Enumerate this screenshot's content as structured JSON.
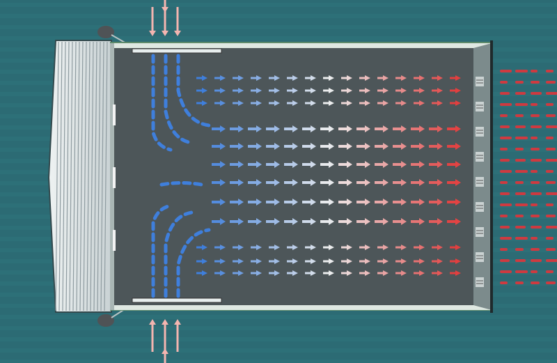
{
  "colors": {
    "water": "#2c6b74",
    "water_stripe": "#2f737c",
    "floor": "#4d5659",
    "wall": "#dfe8e2",
    "wall_edge": "#5d8a6b",
    "cold": "#3f7fdc",
    "neutral": "#eeeeee",
    "warm": "#e23b3b",
    "inflow_arrow": "#f4b5b0",
    "exhaust": "#e0343a"
  },
  "icons": {
    "inlet_fan": "cooling-pad-icon",
    "exhaust_fan": "exhaust-fan-icon",
    "air_arrow": "airflow-arrow-icon"
  }
}
